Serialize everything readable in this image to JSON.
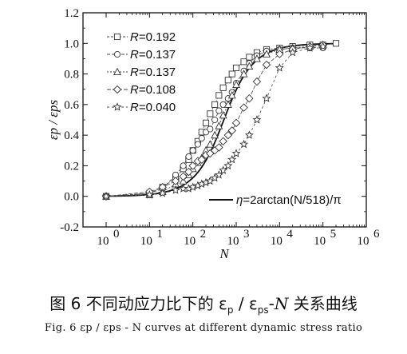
{
  "chart_data": {
    "type": "scatter",
    "xlabel": "N",
    "ylabel": "εp / εps",
    "xscale": "log",
    "xlim": [
      0,
      6
    ],
    "ylim": [
      -0.2,
      1.2
    ],
    "x_ticks": [
      "10",
      "10",
      "10",
      "10",
      "10",
      "10",
      "10"
    ],
    "x_tick_exponents": [
      "0",
      "1",
      "2",
      "3",
      "4",
      "5",
      "6"
    ],
    "y_ticks": [
      "-0.2",
      "0.0",
      "0.2",
      "0.4",
      "0.6",
      "0.8",
      "1.0",
      "1.2"
    ],
    "legend_position": "top-left",
    "series": [
      {
        "name_prefix": "R",
        "name_value": "=0.192",
        "marker": "square",
        "x": [
          1,
          10,
          20,
          40,
          60,
          80,
          100,
          130,
          160,
          200,
          250,
          320,
          400,
          500,
          650,
          800,
          1000,
          1500,
          2000,
          3000,
          5000,
          10000,
          20000,
          50000,
          100000,
          200000
        ],
        "y": [
          0.0,
          0.02,
          0.06,
          0.12,
          0.18,
          0.24,
          0.3,
          0.36,
          0.42,
          0.48,
          0.54,
          0.6,
          0.66,
          0.71,
          0.76,
          0.8,
          0.84,
          0.88,
          0.91,
          0.94,
          0.96,
          0.97,
          0.98,
          0.99,
          0.99,
          1.0
        ]
      },
      {
        "name_prefix": "R",
        "name_value": "=0.137",
        "marker": "circle",
        "x": [
          1,
          10,
          20,
          40,
          60,
          80,
          100,
          130,
          160,
          200,
          250,
          320,
          400,
          500,
          650,
          800,
          1000,
          1500,
          2000,
          3000,
          5000,
          10000,
          20000,
          50000,
          100000
        ],
        "y": [
          0.0,
          0.02,
          0.05,
          0.14,
          0.2,
          0.26,
          0.3,
          0.34,
          0.38,
          0.42,
          0.44,
          0.5,
          0.56,
          0.6,
          0.64,
          0.68,
          0.74,
          0.82,
          0.87,
          0.92,
          0.95,
          0.96,
          0.97,
          0.97,
          0.97
        ]
      },
      {
        "name_prefix": "R",
        "name_value": "=0.137",
        "marker": "triangle",
        "x": [
          1,
          10,
          20,
          40,
          60,
          80,
          100,
          130,
          160,
          200,
          250,
          320,
          400,
          500,
          650,
          800,
          1000,
          1500,
          2000,
          3000,
          5000,
          10000,
          20000,
          50000,
          100000
        ],
        "y": [
          0.0,
          0.01,
          0.03,
          0.08,
          0.1,
          0.14,
          0.18,
          0.22,
          0.25,
          0.3,
          0.34,
          0.4,
          0.46,
          0.53,
          0.6,
          0.66,
          0.73,
          0.8,
          0.85,
          0.9,
          0.93,
          0.96,
          0.97,
          0.98,
          0.99
        ]
      },
      {
        "name_prefix": "R",
        "name_value": "=0.108",
        "marker": "diamond",
        "x": [
          1,
          10,
          20,
          40,
          60,
          80,
          100,
          130,
          160,
          200,
          250,
          320,
          400,
          500,
          650,
          800,
          1000,
          1500,
          2000,
          3000,
          5000,
          10000,
          20000,
          50000,
          100000
        ],
        "y": [
          0.0,
          0.03,
          0.06,
          0.1,
          0.13,
          0.16,
          0.2,
          0.23,
          0.24,
          0.27,
          0.28,
          0.3,
          0.32,
          0.36,
          0.4,
          0.43,
          0.48,
          0.58,
          0.64,
          0.75,
          0.86,
          0.93,
          0.96,
          0.98,
          0.99
        ]
      },
      {
        "name_prefix": "R",
        "name_value": "=0.040",
        "marker": "star",
        "x": [
          1,
          10,
          20,
          40,
          60,
          80,
          100,
          130,
          160,
          200,
          250,
          320,
          400,
          500,
          650,
          800,
          1000,
          1500,
          2000,
          3000,
          5000,
          10000,
          20000,
          50000,
          100000
        ],
        "y": [
          0.0,
          0.01,
          0.02,
          0.04,
          0.05,
          0.05,
          0.06,
          0.07,
          0.08,
          0.09,
          0.1,
          0.12,
          0.14,
          0.17,
          0.2,
          0.24,
          0.28,
          0.34,
          0.4,
          0.5,
          0.64,
          0.84,
          0.94,
          0.97,
          0.98
        ]
      }
    ],
    "fit_curve": {
      "label_symbol": "η",
      "label_expression": "=2arctan(N/518)/π",
      "formula_k": 518
    },
    "caption": {
      "cn_prefix": "图 6   不同动应力比下的 ε",
      "cn_sub1": "p",
      "cn_mid": " / ε",
      "cn_sub2": "ps",
      "cn_dash": "-",
      "cn_italic": "N",
      "cn_suffix": " 关系曲线",
      "en": "Fig. 6    εp / εps - N curves at different dynamic stress ratio"
    }
  }
}
